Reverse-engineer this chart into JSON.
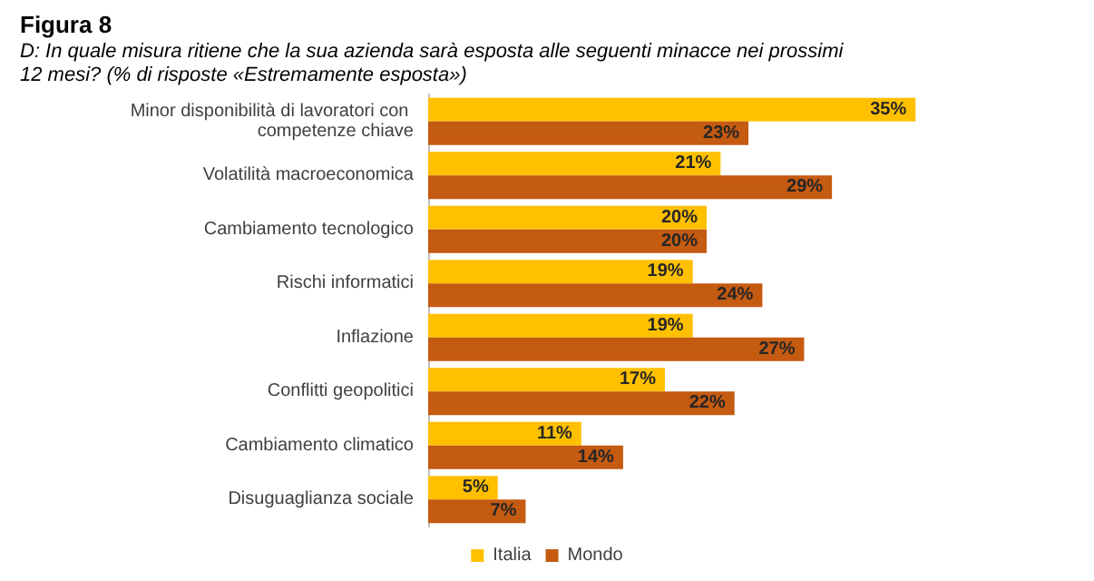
{
  "chart_data": {
    "type": "bar",
    "orientation": "horizontal",
    "title": "Figura 8",
    "subtitle": "D: In quale misura ritiene che la sua azienda sarà esposta alle seguenti minacce nei prossimi 12 mesi? (% di risposte «Estremamente esposta»)",
    "categories": [
      "Minor disponibilità di lavoratori con competenze chiave",
      "Volatilità macroeconomica",
      "Cambiamento tecnologico",
      "Rischi informatici",
      "Inflazione",
      "Conflitti geopolitici",
      "Cambiamento climatico",
      "Disuguaglianza sociale"
    ],
    "series": [
      {
        "name": "Italia",
        "color": "#ffc000",
        "values": [
          35,
          21,
          20,
          19,
          19,
          17,
          11,
          5
        ],
        "value_labels": [
          "35%",
          "21%",
          "20%",
          "19%",
          "19%",
          "17%",
          "11%",
          "5%"
        ]
      },
      {
        "name": "Mondo",
        "color": "#c55a11",
        "values": [
          23,
          29,
          20,
          24,
          27,
          22,
          14,
          7
        ],
        "value_labels": [
          "23%",
          "29%",
          "20%",
          "24%",
          "27%",
          "22%",
          "14%",
          "7%"
        ]
      }
    ],
    "legend": "bottom"
  }
}
